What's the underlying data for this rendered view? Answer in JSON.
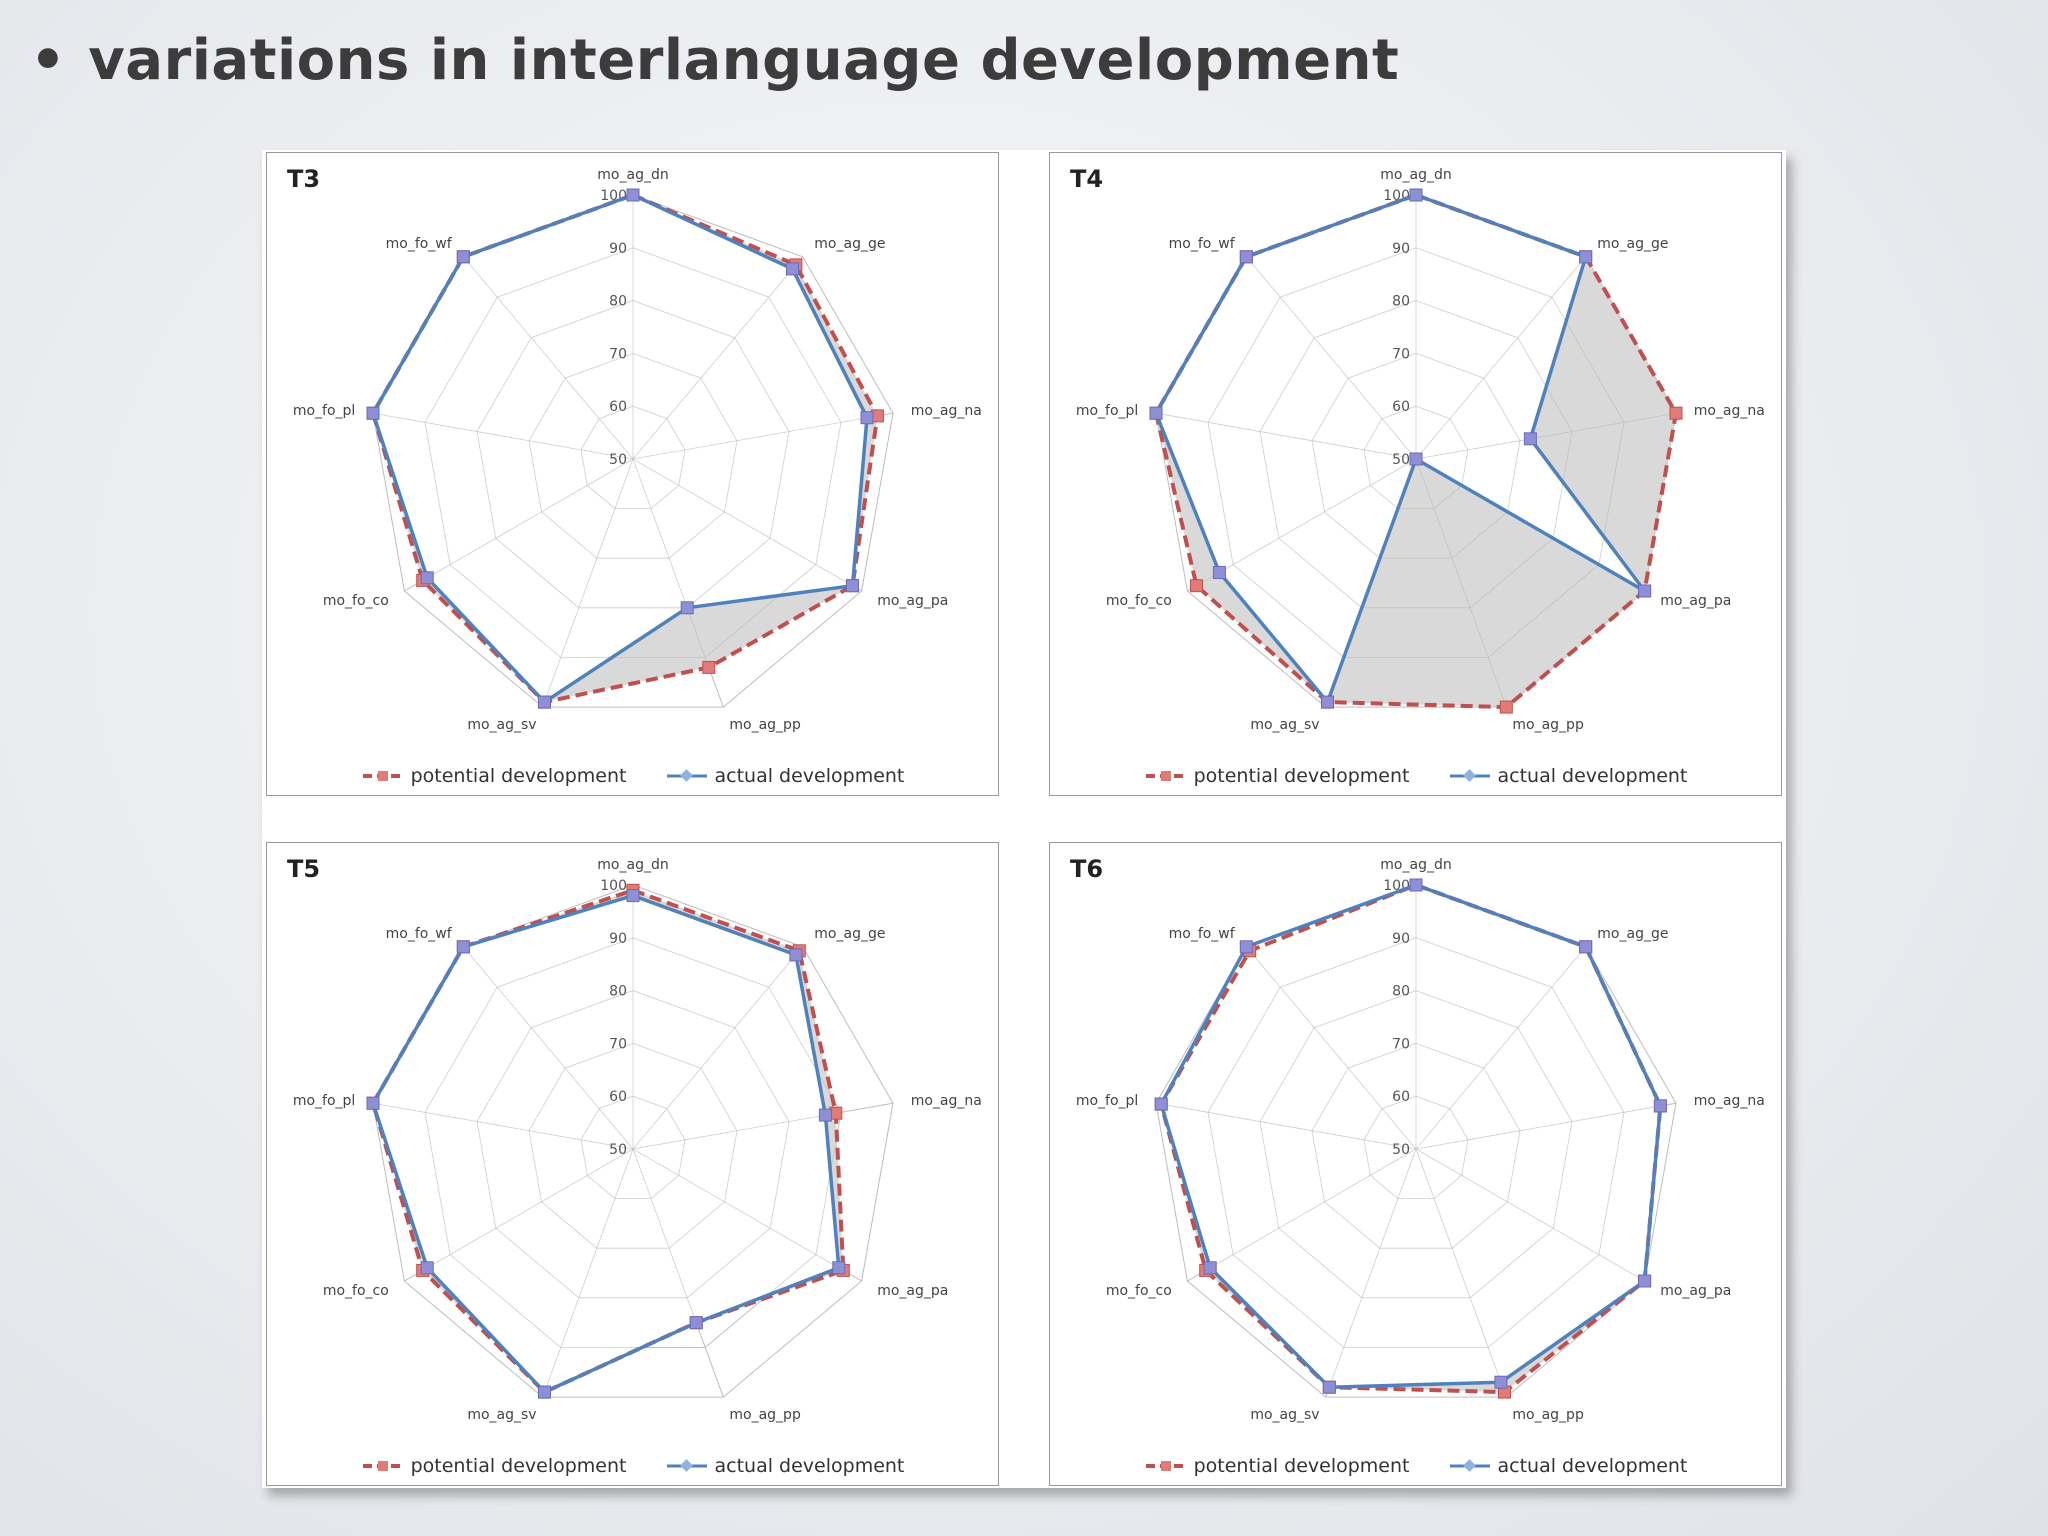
{
  "slide": {
    "bullet": "•",
    "title": "variations in interlanguage development"
  },
  "legend": {
    "potential": "potential development",
    "actual": "actual development"
  },
  "colors": {
    "potential": "#c0504d",
    "actual": "#4f81bd",
    "marker": "#8f8fd6",
    "fill": "#d9d9d9",
    "grid": "#c8c8c8"
  },
  "chart_data": [
    {
      "type": "radar",
      "title": "T3",
      "axes": [
        "mo_ag_dn",
        "mo_ag_ge",
        "mo_ag_na",
        "mo_ag_pa",
        "mo_ag_pp",
        "mo_ag_sv",
        "mo_fo_co",
        "mo_fo_pl",
        "mo_fo_wf"
      ],
      "rlim": [
        50,
        100
      ],
      "ticks": [
        50,
        60,
        70,
        80,
        90,
        100
      ],
      "series": [
        {
          "name": "potential development",
          "values": [
            100,
            98,
            97,
            98,
            92,
            99,
            96,
            100,
            100
          ]
        },
        {
          "name": "actual development",
          "values": [
            100,
            97,
            95,
            98,
            80,
            99,
            95,
            100,
            100
          ]
        }
      ]
    },
    {
      "type": "radar",
      "title": "T4",
      "axes": [
        "mo_ag_dn",
        "mo_ag_ge",
        "mo_ag_na",
        "mo_ag_pa",
        "mo_ag_pp",
        "mo_ag_sv",
        "mo_fo_co",
        "mo_fo_pl",
        "mo_fo_wf"
      ],
      "rlim": [
        50,
        100
      ],
      "ticks": [
        50,
        60,
        70,
        80,
        90,
        100
      ],
      "series": [
        {
          "name": "potential development",
          "values": [
            100,
            100,
            100,
            100,
            100,
            99,
            98,
            100,
            100
          ]
        },
        {
          "name": "actual development",
          "values": [
            100,
            100,
            72,
            100,
            50,
            99,
            93,
            100,
            100
          ]
        }
      ]
    },
    {
      "type": "radar",
      "title": "T5",
      "axes": [
        "mo_ag_dn",
        "mo_ag_ge",
        "mo_ag_na",
        "mo_ag_pa",
        "mo_ag_pp",
        "mo_ag_sv",
        "mo_fo_co",
        "mo_fo_pl",
        "mo_fo_wf"
      ],
      "rlim": [
        50,
        100
      ],
      "ticks": [
        50,
        60,
        70,
        80,
        90,
        100
      ],
      "series": [
        {
          "name": "potential development",
          "values": [
            99,
            99,
            89,
            96,
            85,
            99,
            96,
            100,
            100
          ]
        },
        {
          "name": "actual development",
          "values": [
            98,
            98,
            87,
            95,
            85,
            99,
            95,
            100,
            100
          ]
        }
      ]
    },
    {
      "type": "radar",
      "title": "T6",
      "axes": [
        "mo_ag_dn",
        "mo_ag_ge",
        "mo_ag_na",
        "mo_ag_pa",
        "mo_ag_pp",
        "mo_ag_sv",
        "mo_fo_co",
        "mo_fo_pl",
        "mo_fo_wf"
      ],
      "rlim": [
        50,
        100
      ],
      "ticks": [
        50,
        60,
        70,
        80,
        90,
        100
      ],
      "series": [
        {
          "name": "potential development",
          "values": [
            100,
            100,
            97,
            100,
            99,
            98,
            96,
            99,
            99
          ]
        },
        {
          "name": "actual development",
          "values": [
            100,
            100,
            97,
            100,
            97,
            98,
            95,
            99,
            100
          ]
        }
      ]
    }
  ]
}
